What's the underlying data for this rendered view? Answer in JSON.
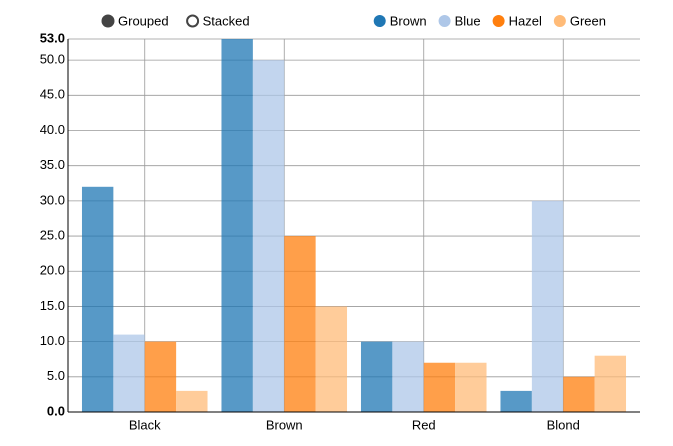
{
  "chart_data": {
    "type": "bar",
    "controls": [
      {
        "label": "Grouped",
        "selected": true
      },
      {
        "label": "Stacked",
        "selected": false
      }
    ],
    "categories": [
      "Black",
      "Brown",
      "Red",
      "Blond"
    ],
    "series": [
      {
        "name": "Brown",
        "color": "#1f77b4",
        "values": [
          32,
          53,
          10,
          3
        ]
      },
      {
        "name": "Blue",
        "color": "#aec7e8",
        "values": [
          11,
          50,
          10,
          30
        ]
      },
      {
        "name": "Hazel",
        "color": "#ff7f0e",
        "values": [
          10,
          25,
          7,
          5
        ]
      },
      {
        "name": "Green",
        "color": "#ffbb78",
        "values": [
          3,
          15,
          7,
          8
        ]
      }
    ],
    "ylim": [
      0,
      53
    ],
    "yticks": [
      {
        "value": 0,
        "label": "0.0"
      },
      {
        "value": 5,
        "label": "5.0"
      },
      {
        "value": 10,
        "label": "10.0"
      },
      {
        "value": 15,
        "label": "15.0"
      },
      {
        "value": 20,
        "label": "20.0"
      },
      {
        "value": 25,
        "label": "25.0"
      },
      {
        "value": 30,
        "label": "30.0"
      },
      {
        "value": 35,
        "label": "35.0"
      },
      {
        "value": 40,
        "label": "40.0"
      },
      {
        "value": 45,
        "label": "45.0"
      },
      {
        "value": 50,
        "label": "50.0"
      },
      {
        "value": 53,
        "label": "53.0"
      }
    ],
    "grid": true
  }
}
